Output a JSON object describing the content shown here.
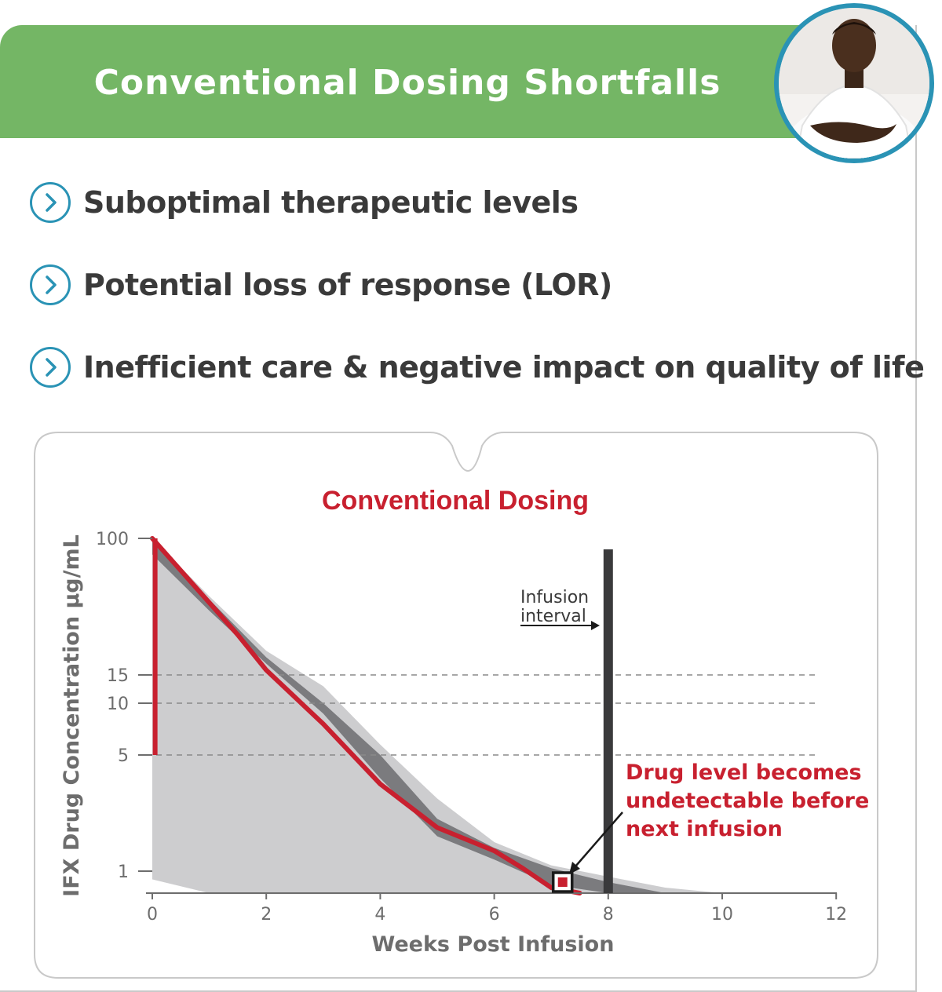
{
  "header": {
    "title": "Conventional Dosing Shortfalls"
  },
  "avatar": {
    "icon": "patient-photo"
  },
  "bullets": [
    {
      "text": "Suboptimal therapeutic levels",
      "icon": "chevron-right-circle-icon"
    },
    {
      "text": "Potential loss of response (LOR)",
      "icon": "chevron-right-circle-icon"
    },
    {
      "text": "Inefficient care & negative impact on quality of life",
      "icon": "chevron-right-circle-icon"
    }
  ],
  "colors": {
    "header_green": "#74b665",
    "accent_blue": "#2a93b5",
    "drug_red": "#c8202f",
    "band_light": "#cdcdcf",
    "band_dark": "#7b7b7e"
  },
  "chart_data": {
    "type": "line",
    "title": "Conventional Dosing",
    "xlabel": "Weeks Post Infusion",
    "ylabel": "IFX Drug Concentration µg/mL",
    "xlim": [
      0,
      12
    ],
    "xticks": [
      "0",
      "2",
      "4",
      "6",
      "8",
      "10",
      "12"
    ],
    "yticks": [
      "1",
      "5",
      "10",
      "15",
      "100"
    ],
    "reference_lines": [
      5,
      10,
      15
    ],
    "infusion_week": 8,
    "infusion_label_line1": "Infusion",
    "infusion_label_line2": "interval",
    "annotation": {
      "line1": "Drug level becomes",
      "line2": "undetectable before",
      "line3": "next infusion",
      "at_week": 7.2
    },
    "series": [
      {
        "x": [
          0,
          0.5,
          1,
          1.5,
          2,
          3,
          4,
          5,
          6,
          6.5,
          7,
          7.5
        ],
        "y": [
          100,
          80,
          60,
          40,
          18,
          8,
          4,
          2.5,
          1.7,
          1.1,
          0.7,
          0.5
        ]
      }
    ],
    "bands": [
      {
        "x": [
          0,
          1,
          2,
          3,
          4,
          5,
          6,
          7,
          8,
          9,
          10,
          11
        ],
        "lower": [
          0.85,
          0.5,
          0.3,
          0.2,
          0.1,
          0.05,
          0.02,
          0.01,
          0.01,
          0.01,
          0.01,
          0.01
        ],
        "upper": [
          100,
          64,
          30,
          13,
          6,
          3.5,
          2,
          1.2,
          0.9,
          0.7,
          0.5,
          0.5
        ]
      },
      {
        "x": [
          0,
          1,
          2,
          3,
          4,
          5,
          6,
          7,
          8,
          9
        ],
        "lower": [
          90,
          55,
          22,
          9,
          4.2,
          2.2,
          1.4,
          0.75,
          0.45,
          0.4
        ],
        "upper": [
          100,
          62,
          26,
          10,
          5,
          2.8,
          1.8,
          1.1,
          0.8,
          0.6
        ]
      }
    ]
  }
}
